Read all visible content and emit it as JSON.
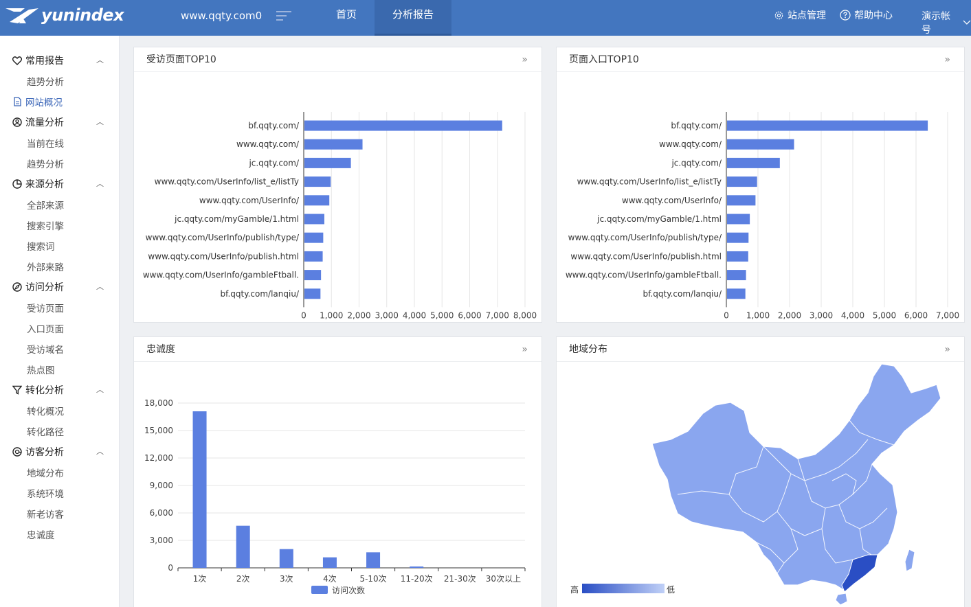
{
  "brand": {
    "name": "yunindex",
    "accent": "#4376bf",
    "bar_color": "#5b7fe0"
  },
  "topbar": {
    "site": "www.qqty.com0",
    "nav": [
      "首页",
      "分析报告"
    ],
    "site_manage": "站点管理",
    "help": "帮助中心",
    "account": "演示帐号"
  },
  "sidebar": {
    "groups": [
      {
        "label": "常用报告",
        "icon": "heart-icon",
        "items": [
          "趋势分析",
          "网站概况"
        ]
      },
      {
        "label": "流量分析",
        "icon": "user-circle-icon",
        "items": [
          "当前在线",
          "趋势分析"
        ]
      },
      {
        "label": "来源分析",
        "icon": "pie-icon",
        "items": [
          "全部来源",
          "搜索引擎",
          "搜索词",
          "外部来路"
        ]
      },
      {
        "label": "访问分析",
        "icon": "compass-icon",
        "items": [
          "受访页面",
          "入口页面",
          "受访域名",
          "热点图"
        ]
      },
      {
        "label": "转化分析",
        "icon": "funnel-icon",
        "items": [
          "转化概况",
          "转化路径"
        ]
      },
      {
        "label": "访客分析",
        "icon": "visitor-icon",
        "items": [
          "地域分布",
          "系统环境",
          "新老访客",
          "忠诚度"
        ]
      }
    ],
    "active": "网站概况"
  },
  "cards": {
    "visited": {
      "title": "受访页面TOP10"
    },
    "entry": {
      "title": "页面入口TOP10"
    },
    "loyalty": {
      "title": "忠诚度"
    },
    "region": {
      "title": "地域分布",
      "legend_high": "高",
      "legend_low": "低",
      "colors": {
        "base": "#8aa6ef",
        "high": "#2a4ec4"
      }
    }
  },
  "chart_data": [
    {
      "type": "bar",
      "orientation": "horizontal",
      "title": "受访页面TOP10",
      "categories": [
        "bf.qqty.com/",
        "www.qqty.com/",
        "jc.qqty.com/",
        "www.qqty.com/UserInfo/list_e/listTy",
        "www.qqty.com/UserInfo/",
        "jc.qqty.com/myGamble/1.html",
        "www.qqty.com/UserInfo/publish/type/",
        "www.qqty.com/UserInfo/publish.html",
        "www.qqty.com/UserInfo/gambleFtball.",
        "bf.qqty.com/lanqiu/"
      ],
      "values": [
        7150,
        2100,
        1680,
        950,
        900,
        720,
        680,
        660,
        600,
        580
      ],
      "xlim": [
        0,
        8000
      ],
      "xticks": [
        "0",
        "1,000",
        "2,000",
        "3,000",
        "4,000",
        "5,000",
        "6,000",
        "7,000",
        "8,000"
      ]
    },
    {
      "type": "bar",
      "orientation": "horizontal",
      "title": "页面入口TOP10",
      "categories": [
        "bf.qqty.com/",
        "www.qqty.com/",
        "jc.qqty.com/",
        "www.qqty.com/UserInfo/list_e/listTy",
        "www.qqty.com/UserInfo/",
        "jc.qqty.com/myGamble/1.html",
        "www.qqty.com/UserInfo/publish/type/",
        "www.qqty.com/UserInfo/publish.html",
        "www.qqty.com/UserInfo/gambleFtball.",
        "bf.qqty.com/lanqiu/"
      ],
      "values": [
        6350,
        2120,
        1670,
        950,
        900,
        720,
        680,
        670,
        600,
        580
      ],
      "xlim": [
        0,
        7000
      ],
      "xticks": [
        "0",
        "1,000",
        "2,000",
        "3,000",
        "4,000",
        "5,000",
        "6,000",
        "7,000"
      ]
    },
    {
      "type": "bar",
      "title": "忠诚度",
      "categories": [
        "1次",
        "2次",
        "3次",
        "4次",
        "5-10次",
        "11-20次",
        "21-30次",
        "30次以上"
      ],
      "series": [
        {
          "name": "访问次数",
          "values": [
            17100,
            4600,
            2050,
            1150,
            1700,
            150,
            0,
            0
          ]
        }
      ],
      "ylim": [
        0,
        18000
      ],
      "yticks": [
        "0",
        "3,000",
        "6,000",
        "9,000",
        "12,000",
        "15,000",
        "18,000"
      ]
    }
  ]
}
